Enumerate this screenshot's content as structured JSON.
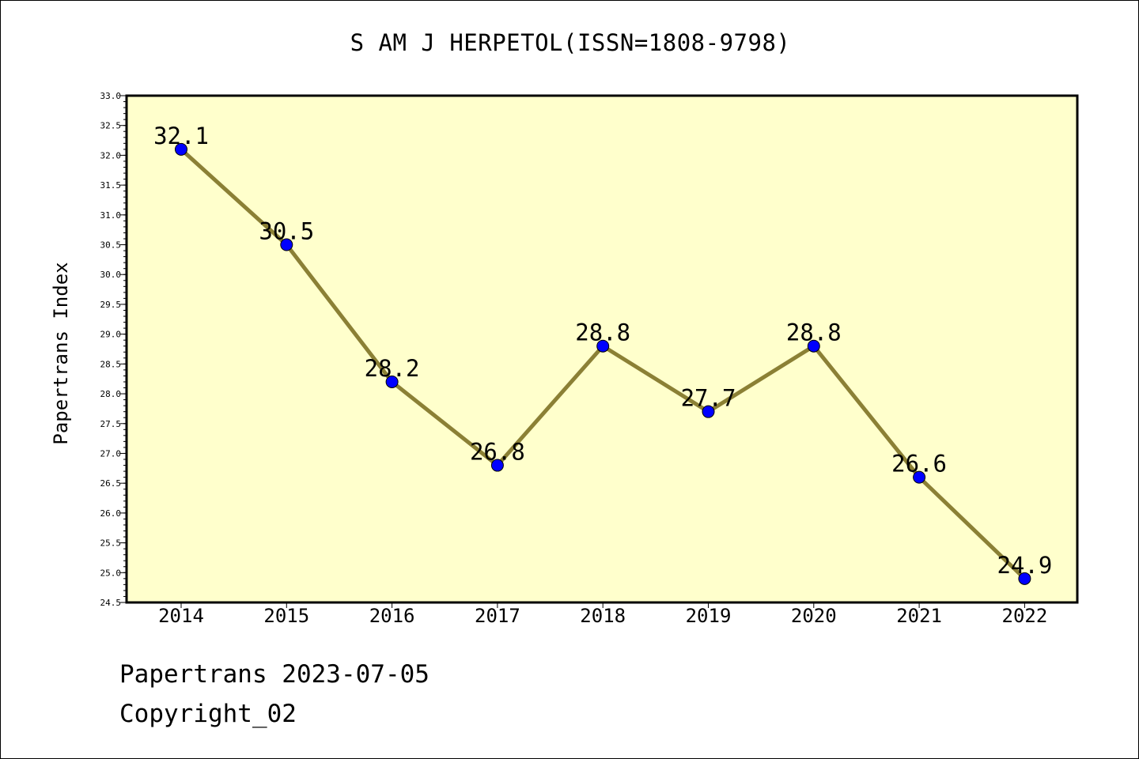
{
  "chart_data": {
    "type": "line",
    "title": "S AM J HERPETOL(ISSN=1808-9798)",
    "xlabel": "",
    "ylabel": "Papertrans Index",
    "categories": [
      "2014",
      "2015",
      "2016",
      "2017",
      "2018",
      "2019",
      "2020",
      "2021",
      "2022"
    ],
    "values": [
      32.1,
      30.5,
      28.2,
      26.8,
      28.8,
      27.7,
      28.8,
      26.6,
      24.9
    ],
    "data_labels": [
      "32.1",
      "30.5",
      "28.2",
      "26.8",
      "28.8",
      "27.7",
      "28.8",
      "26.6",
      "24.9"
    ],
    "ylim": [
      24.5,
      33.0
    ],
    "yticks": [
      "24.5",
      "25.0",
      "25.5",
      "26.0",
      "26.5",
      "27.0",
      "27.5",
      "28.0",
      "28.5",
      "29.0",
      "29.5",
      "30.0",
      "30.5",
      "31.0",
      "31.5",
      "32.0",
      "32.5",
      "33.0"
    ],
    "grid": false,
    "colors": {
      "plot_background": "#ffffcc",
      "line": "#8b8035",
      "marker": "#0000ff"
    }
  },
  "footer": {
    "date_line": "Papertrans 2023-07-05",
    "copyright": "Copyright_02"
  }
}
